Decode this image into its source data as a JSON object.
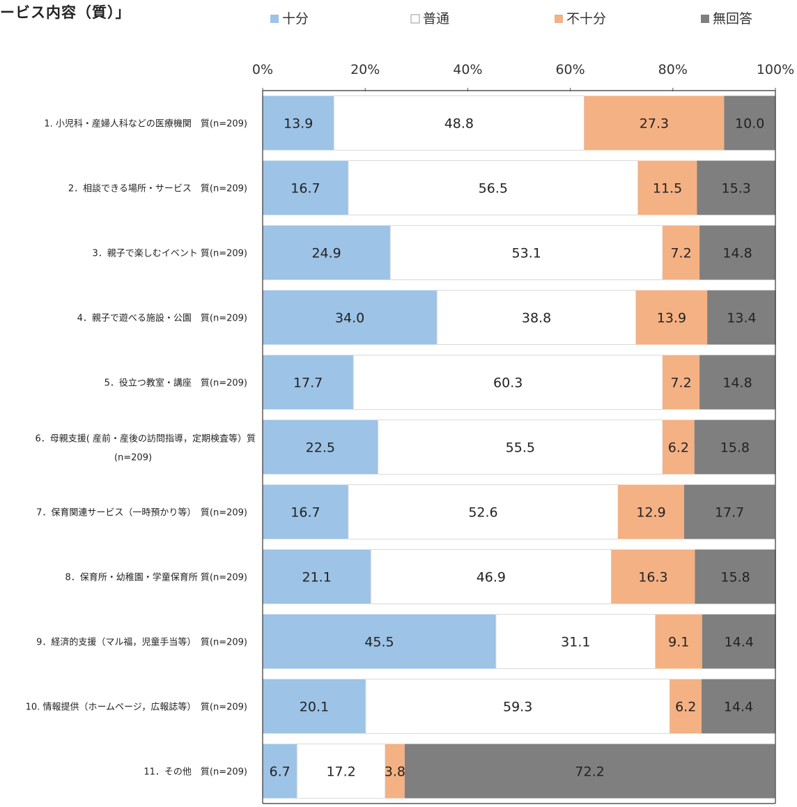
{
  "chart_data": {
    "type": "bar",
    "orientation": "horizontal",
    "stacked": "percent",
    "title": "ービス内容（質）」",
    "legend_position": "top",
    "xlim": [
      0,
      100
    ],
    "x_ticks": [
      "0%",
      "20%",
      "40%",
      "60%",
      "80%",
      "100%"
    ],
    "grid": false,
    "categories": [
      [
        "1. 小児科・産婦人科などの医療機関　質(n=209)"
      ],
      [
        "2．相談できる場所・サービス　質(n=209)"
      ],
      [
        "3．親子で楽しむイベント 質(n=209)"
      ],
      [
        "4．親子で遊べる施設・公園　質(n=209)"
      ],
      [
        "5．役立つ教室・講座　質(n=209)"
      ],
      [
        "6．母親支援( 産前・産後の訪問指導，定期検査等）質",
        "(n=209)"
      ],
      [
        "7．保育関連サービス（一時預かり等）　質(n=209)"
      ],
      [
        "8．保育所・幼稚園・学童保育所 質(n=209)"
      ],
      [
        "9．経済的支援（マル福，児童手当等）　質(n=209)"
      ],
      [
        "10. 情報提供（ホームページ，広報誌等）　質(n=209)"
      ],
      [
        "11．その他　質(n=209)"
      ]
    ],
    "series": [
      {
        "name": "十分",
        "color": "#9dc3e6",
        "label_color": "#222222",
        "values": [
          13.9,
          16.7,
          24.9,
          34.0,
          17.7,
          22.5,
          16.7,
          21.1,
          45.5,
          20.1,
          6.7
        ]
      },
      {
        "name": "普通",
        "color": "#ffffff",
        "label_color": "#222222",
        "values": [
          48.8,
          56.5,
          53.1,
          38.8,
          60.3,
          55.5,
          52.6,
          46.9,
          31.1,
          59.3,
          17.2
        ]
      },
      {
        "name": "不十分",
        "color": "#f4b183",
        "label_color": "#222222",
        "values": [
          27.3,
          11.5,
          7.2,
          13.9,
          7.2,
          6.2,
          12.9,
          16.3,
          9.1,
          6.2,
          3.8
        ]
      },
      {
        "name": "無回答",
        "color": "#7f7f7f",
        "label_color": "#222222",
        "values": [
          10.0,
          15.3,
          14.8,
          13.4,
          14.8,
          15.8,
          17.7,
          15.8,
          14.4,
          14.4,
          72.2
        ]
      }
    ]
  }
}
